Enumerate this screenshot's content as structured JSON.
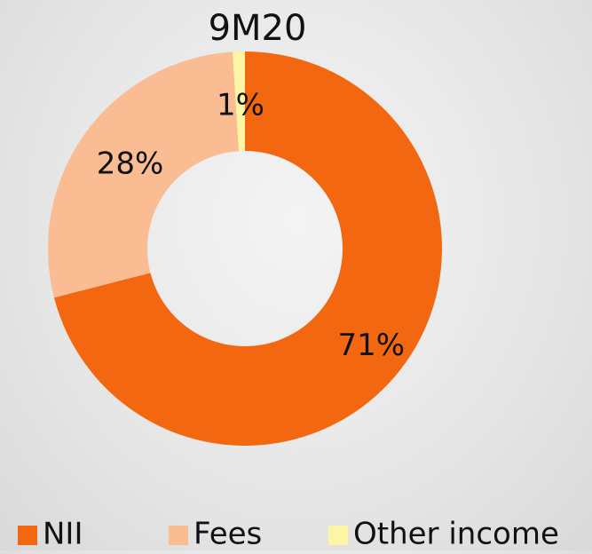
{
  "chart_data": {
    "type": "pie",
    "title": "9M20",
    "categories": [
      "NII",
      "Fees",
      "Other income"
    ],
    "values": [
      71,
      28,
      1
    ],
    "value_labels": [
      "71%",
      "28%",
      "1%"
    ],
    "colors": [
      "#f26710",
      "#f9bc93",
      "#fcf6a4"
    ],
    "donut": true
  }
}
